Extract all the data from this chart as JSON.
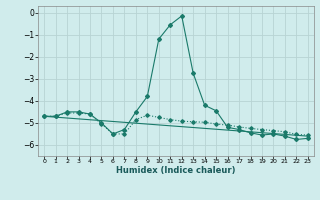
{
  "xlabel": "Humidex (Indice chaleur)",
  "background_color": "#d0ecec",
  "grid_color": "#b8d4d4",
  "line_color": "#1a7a6a",
  "xlim": [
    -0.5,
    23.5
  ],
  "ylim": [
    -6.5,
    0.3
  ],
  "yticks": [
    0,
    -1,
    -2,
    -3,
    -4,
    -5,
    -6
  ],
  "xticks": [
    0,
    1,
    2,
    3,
    4,
    5,
    6,
    7,
    8,
    9,
    10,
    11,
    12,
    13,
    14,
    15,
    16,
    17,
    18,
    19,
    20,
    21,
    22,
    23
  ],
  "series1_x": [
    0,
    1,
    2,
    3,
    4,
    5,
    6,
    7,
    8,
    9,
    10,
    11,
    12,
    13,
    14,
    15,
    16,
    17,
    18,
    19,
    20,
    21,
    22,
    23
  ],
  "series1_y": [
    -4.7,
    -4.7,
    -4.5,
    -4.5,
    -4.6,
    -5.0,
    -5.5,
    -5.3,
    -4.5,
    -3.8,
    -1.2,
    -0.55,
    -0.15,
    -2.75,
    -4.2,
    -4.45,
    -5.2,
    -5.3,
    -5.45,
    -5.55,
    -5.5,
    -5.6,
    -5.75,
    -5.7
  ],
  "series2_x": [
    0,
    1,
    2,
    3,
    4,
    5,
    6,
    7,
    8,
    9,
    10,
    11,
    12,
    13,
    14,
    15,
    16,
    17,
    18,
    19,
    20,
    21,
    22,
    23
  ],
  "series2_y": [
    -4.7,
    -4.7,
    -4.55,
    -4.55,
    -4.6,
    -5.05,
    -5.5,
    -5.5,
    -4.85,
    -4.65,
    -4.75,
    -4.85,
    -4.92,
    -4.95,
    -4.97,
    -5.05,
    -5.1,
    -5.18,
    -5.25,
    -5.3,
    -5.35,
    -5.4,
    -5.52,
    -5.55
  ],
  "series3_x": [
    0,
    23
  ],
  "series3_y": [
    -4.7,
    -5.6
  ]
}
